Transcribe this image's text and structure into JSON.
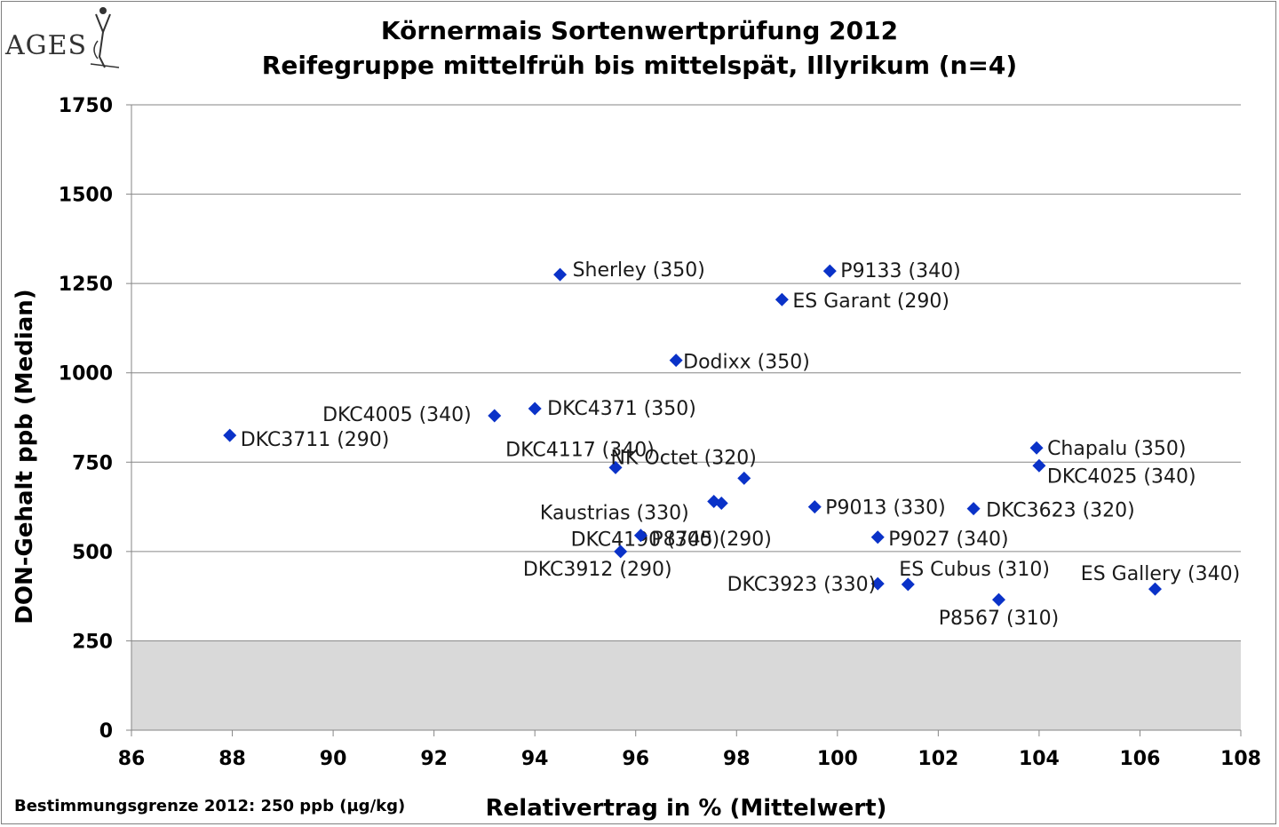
{
  "title_line1": "Körnermais Sortenwertprüfung 2012",
  "title_line2": "Reifegruppe mittelfrüh bis mittelspät, Illyrikum (n=4)",
  "logo_text": "AGES",
  "footnote": "Bestimmungsgrenze 2012: 250 ppb (µg/kg)",
  "chart_data": {
    "type": "scatter",
    "xlabel": "Relativertrag in % (Mittelwert)",
    "ylabel": "DON-Gehalt ppb (Median)",
    "xlim": [
      86,
      108
    ],
    "ylim": [
      0,
      1750
    ],
    "xticks": [
      86,
      88,
      90,
      92,
      94,
      96,
      98,
      100,
      102,
      104,
      106,
      108
    ],
    "yticks": [
      0,
      250,
      500,
      750,
      1000,
      1250,
      1500,
      1750
    ],
    "grid": "horizontal",
    "marker": "diamond",
    "marker_color": "#0a32c8",
    "detection_limit_band": {
      "from": 0,
      "to": 250,
      "color": "#d9d9d9"
    },
    "points": [
      {
        "label": "Sherley (350)",
        "x": 94.5,
        "y": 1275
      },
      {
        "label": "P9133 (340)",
        "x": 99.85,
        "y": 1285
      },
      {
        "label": "ES Garant (290)",
        "x": 98.9,
        "y": 1205
      },
      {
        "label": "Dodixx (350)",
        "x": 96.8,
        "y": 1035
      },
      {
        "label": "DKC4005 (340)",
        "x": 93.2,
        "y": 880
      },
      {
        "label": "DKC4371 (350)",
        "x": 94.0,
        "y": 900
      },
      {
        "label": "DKC3711 (290)",
        "x": 87.95,
        "y": 825
      },
      {
        "label": "DKC4117 (340)",
        "x": 95.6,
        "y": 735
      },
      {
        "label": "NK Octet (320)",
        "x": 98.15,
        "y": 705
      },
      {
        "label": "Kaustrias (330)",
        "x": 97.55,
        "y": 640
      },
      {
        "label": "DKC4190 (300)",
        "x": 97.7,
        "y": 635
      },
      {
        "label": "P8745 (290)",
        "x": 96.1,
        "y": 545
      },
      {
        "label": "DKC3912 (290)",
        "x": 95.7,
        "y": 500
      },
      {
        "label": "P9013 (330)",
        "x": 99.55,
        "y": 625
      },
      {
        "label": "P9027 (340)",
        "x": 100.8,
        "y": 540
      },
      {
        "label": "DKC3923 (330)",
        "x": 100.8,
        "y": 410
      },
      {
        "label": "ES Cubus (310)",
        "x": 101.4,
        "y": 408
      },
      {
        "label": "DKC3623 (320)",
        "x": 102.7,
        "y": 620
      },
      {
        "label": "P8567 (310)",
        "x": 103.2,
        "y": 365
      },
      {
        "label": "Chapalu (350)",
        "x": 103.95,
        "y": 790
      },
      {
        "label": "DKC4025 (340)",
        "x": 104.0,
        "y": 740
      },
      {
        "label": "ES Gallery (340)",
        "x": 106.3,
        "y": 395
      }
    ]
  }
}
